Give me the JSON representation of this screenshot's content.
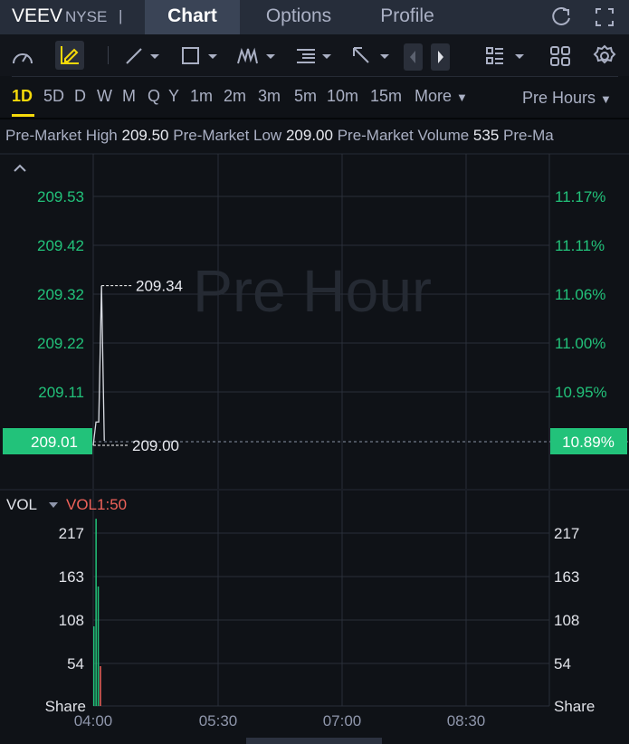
{
  "header": {
    "symbol": "VEEV",
    "exchange": "NYSE",
    "separator": "|",
    "tabs": [
      {
        "label": "Chart",
        "active": true
      },
      {
        "label": "Options"
      },
      {
        "label": "Profile"
      }
    ]
  },
  "toolbar": {
    "icons": [
      "gauge-icon",
      "pencil-icon",
      "line-tool-icon",
      "rectangle-tool-icon",
      "pattern-tool-icon",
      "fibonacci-tool-icon",
      "arrow-tool-icon",
      "prev-icon",
      "next-icon",
      "layout-list-icon",
      "grid-icon",
      "gear-icon"
    ]
  },
  "timeframes": {
    "items": [
      "1D",
      "5D",
      "D",
      "W",
      "M",
      "Q",
      "Y",
      "1m",
      "2m",
      "3m",
      "5m",
      "10m",
      "15m",
      "More"
    ],
    "active": "1D",
    "session": "Pre Hours"
  },
  "info": {
    "high_label": "Pre-Market High",
    "high": "209.50",
    "low_label": "Pre-Market Low",
    "low": "209.00",
    "vol_label": "Pre-Market Volume",
    "vol": "535",
    "more": "Pre-Ma"
  },
  "colors": {
    "up": "#22c27a",
    "down": "#f0625a",
    "accent": "#f5d90a"
  },
  "chart_data": {
    "type": "line",
    "watermark": "Pre Hour",
    "price_ticks": [
      "209.53",
      "209.42",
      "209.32",
      "209.22",
      "209.11",
      "209.01"
    ],
    "pct_ticks": [
      "11.17%",
      "11.11%",
      "11.06%",
      "11.00%",
      "10.95%",
      "10.89%"
    ],
    "last_price": "209.01",
    "last_pct": "10.89%",
    "high_marker": "209.34",
    "low_marker": "209.00",
    "price": [
      {
        "t": "04:00",
        "v": 209.0
      },
      {
        "t": "04:02",
        "v": 209.05
      },
      {
        "t": "04:04",
        "v": 209.05
      },
      {
        "t": "04:06",
        "v": 209.34
      },
      {
        "t": "04:08",
        "v": 209.01
      }
    ],
    "volume_label": "VOL",
    "volume_indicator": "VOL1:50",
    "volume_ticks": [
      "217",
      "163",
      "108",
      "54"
    ],
    "volume_unit": "Share",
    "volume": [
      {
        "v": 100,
        "dir": "up"
      },
      {
        "v": 235,
        "dir": "up"
      },
      {
        "v": 150,
        "dir": "up"
      },
      {
        "v": 50,
        "dir": "down"
      }
    ],
    "x_ticks": [
      "04:00",
      "05:30",
      "07:00",
      "08:30"
    ]
  }
}
